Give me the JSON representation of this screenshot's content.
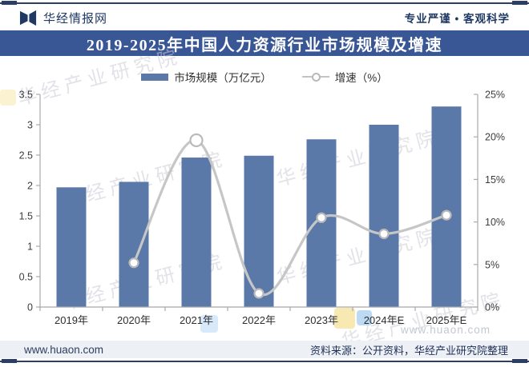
{
  "header": {
    "brand": "华经情报网",
    "slogan": "专业严谨 • 客观科学"
  },
  "title_bar": {
    "title": "2019-2025年中国人力资源行业市场规模及增速"
  },
  "chart_data": {
    "type": "bar",
    "combo": "bar+line",
    "title": "2019-2025年中国人力资源行业市场规模及增速",
    "categories": [
      "2019年",
      "2020年",
      "2021年",
      "2022年",
      "2023年",
      "2024年E",
      "2025年E"
    ],
    "series": [
      {
        "name": "市场规模（万亿元）",
        "type": "bar",
        "axis": "left",
        "values": [
          1.97,
          2.06,
          2.46,
          2.49,
          2.76,
          3.0,
          3.3
        ]
      },
      {
        "name": "增速（%）",
        "type": "line",
        "axis": "right",
        "values": [
          null,
          5.2,
          19.6,
          1.6,
          10.5,
          8.6,
          10.8
        ]
      }
    ],
    "left_axis": {
      "min": 0,
      "max": 3.5,
      "ticks": [
        "0",
        "0.5",
        "1",
        "1.5",
        "2",
        "2.5",
        "3",
        "3.5"
      ]
    },
    "right_axis": {
      "min": 0,
      "max": 25,
      "ticks": [
        "0%",
        "5%",
        "10%",
        "15%",
        "20%",
        "25%"
      ]
    },
    "legend_position": "top",
    "grid": false
  },
  "colors": {
    "bar": "#5a78a8",
    "line": "#c6c6c6",
    "marker_stroke": "#b9b9b9",
    "marker_fill": "#ffffff",
    "axis": "#a9a9a9",
    "tick_label": "#3c3c3c",
    "title_bg": "#3a5795",
    "navy": "#1f3864"
  },
  "watermarks": {
    "brand": "华经产业研究院",
    "site": "www.huaon.com"
  },
  "footer": {
    "site": "www.huaon.com",
    "source": "资料来源：公开资料，华经产业研究院整理"
  }
}
